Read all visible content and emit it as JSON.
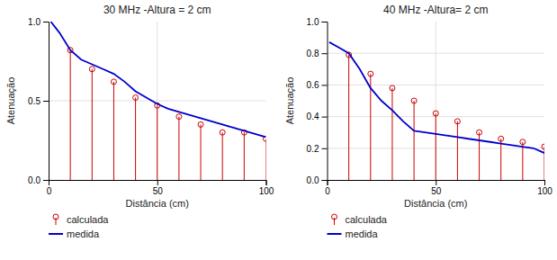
{
  "chart_data": [
    {
      "type": "line",
      "title": "30 MHz -Altura = 2 cm",
      "xlabel": "Distância (cm)",
      "ylabel": "Atenuação",
      "xlim": [
        0,
        100
      ],
      "ylim": [
        0,
        1
      ],
      "xticks": [
        0,
        50,
        100
      ],
      "yticks": [
        {
          "value": 0,
          "label": "0.0"
        },
        0.5,
        {
          "value": 1,
          "label": "1.0"
        }
      ],
      "grid": true,
      "legend": "bottom",
      "series": [
        {
          "name": "   calculada",
          "type": "stem",
          "color": "#cc0000",
          "marker": "circle",
          "x": [
            10,
            20,
            30,
            40,
            50,
            60,
            70,
            80,
            90,
            100
          ],
          "values": [
            0.82,
            0.7,
            0.62,
            0.52,
            0.47,
            0.4,
            0.35,
            0.3,
            0.3,
            0.26
          ]
        },
        {
          "name": "   medida",
          "type": "line",
          "color": "#0000cc",
          "x": [
            1,
            5,
            10,
            15,
            20,
            25,
            30,
            35,
            40,
            45,
            50,
            55,
            60,
            65,
            70,
            75,
            80,
            85,
            90,
            95,
            100
          ],
          "values": [
            1.0,
            0.93,
            0.82,
            0.76,
            0.73,
            0.7,
            0.67,
            0.62,
            0.56,
            0.52,
            0.48,
            0.45,
            0.43,
            0.41,
            0.39,
            0.37,
            0.35,
            0.33,
            0.31,
            0.29,
            0.27
          ]
        }
      ]
    },
    {
      "type": "line",
      "title": "40 MHz -Altura= 2 cm",
      "xlabel": "Distância (cm)",
      "ylabel": "Atenuação",
      "xlim": [
        0,
        100
      ],
      "ylim": [
        0,
        1
      ],
      "xticks": [
        0,
        50,
        100
      ],
      "yticks": [
        {
          "value": 0,
          "label": "0.0"
        },
        0.2,
        0.4,
        0.6,
        0.8,
        {
          "value": 1.0,
          "label": "1.0"
        }
      ],
      "grid": true,
      "legend": "bottom",
      "series": [
        {
          "name": "   calculada",
          "type": "stem",
          "color": "#cc0000",
          "marker": "circle",
          "x": [
            10,
            20,
            30,
            40,
            50,
            60,
            70,
            80,
            90,
            100
          ],
          "values": [
            0.79,
            0.67,
            0.58,
            0.5,
            0.42,
            0.37,
            0.3,
            0.26,
            0.24,
            0.21
          ]
        },
        {
          "name": "   medida",
          "type": "line",
          "color": "#0000cc",
          "x": [
            1,
            5,
            10,
            15,
            20,
            25,
            30,
            35,
            40,
            45,
            50,
            55,
            60,
            65,
            70,
            75,
            80,
            85,
            90,
            95,
            100
          ],
          "values": [
            0.87,
            0.84,
            0.8,
            0.7,
            0.58,
            0.5,
            0.44,
            0.37,
            0.31,
            0.3,
            0.29,
            0.28,
            0.27,
            0.26,
            0.25,
            0.24,
            0.23,
            0.22,
            0.21,
            0.2,
            0.17
          ]
        }
      ]
    }
  ]
}
